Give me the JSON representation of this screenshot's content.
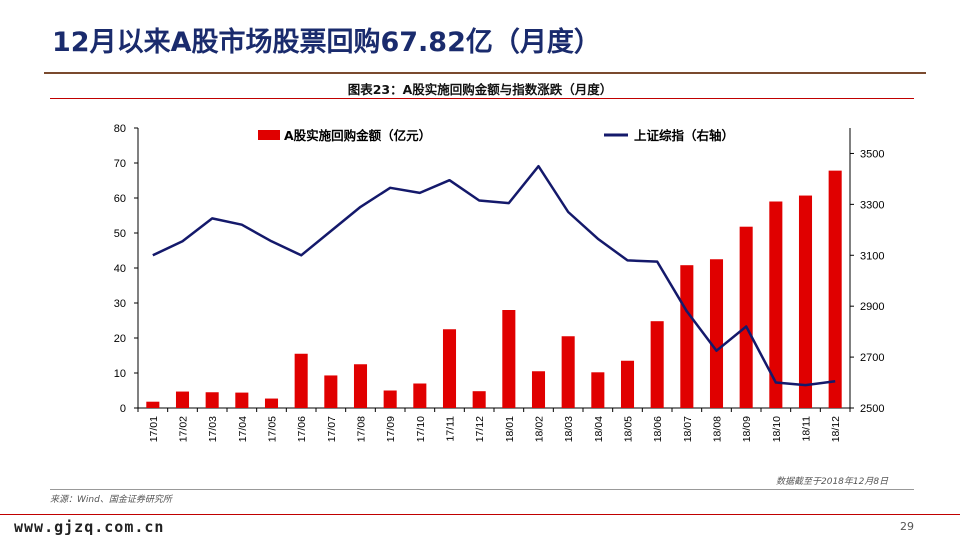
{
  "slide": {
    "title": "12月以来A股市场股票回购67.82亿（月度）",
    "figure_caption": "图表23：A股实施回购金额与指数涨跌（月度）",
    "data_note": "数据截至于2018年12月8日",
    "source": "来源：Wind、国金证券研究所",
    "footer_url": "www.gjzq.com.cn",
    "page_number": "29"
  },
  "colors": {
    "title": "#1a2b6d",
    "bar": "#e00000",
    "line": "#14196b",
    "rule": "#c00000"
  },
  "chart_data": {
    "type": "bar",
    "categories": [
      "17/01",
      "17/02",
      "17/03",
      "17/04",
      "17/05",
      "17/06",
      "17/07",
      "17/08",
      "17/09",
      "17/10",
      "17/11",
      "17/12",
      "18/01",
      "18/02",
      "18/03",
      "18/04",
      "18/05",
      "18/06",
      "18/07",
      "18/08",
      "18/09",
      "18/10",
      "18/11",
      "18/12"
    ],
    "series": [
      {
        "name": "A股实施回购金额（亿元）",
        "type": "bar",
        "axis": "left",
        "values": [
          1.8,
          4.7,
          4.5,
          4.4,
          2.7,
          15.5,
          9.3,
          12.5,
          5.0,
          7.0,
          22.5,
          4.8,
          28.0,
          10.5,
          20.5,
          10.2,
          13.5,
          24.8,
          40.8,
          42.5,
          51.8,
          59.0,
          60.7,
          67.82
        ]
      },
      {
        "name": "上证综指（右轴）",
        "type": "line",
        "axis": "right",
        "values": [
          3100,
          3155,
          3245,
          3220,
          3155,
          3100,
          3195,
          3290,
          3365,
          3345,
          3395,
          3315,
          3305,
          3450,
          3270,
          3165,
          3080,
          3075,
          2880,
          2725,
          2820,
          2600,
          2590,
          2605
        ]
      }
    ],
    "ylim_left": [
      0,
      80
    ],
    "yticks_left": [
      "0",
      "10",
      "20",
      "30",
      "40",
      "50",
      "60",
      "70",
      "80"
    ],
    "ylim_right": [
      2500,
      3600
    ],
    "yticks_right": [
      "2500",
      "2700",
      "2900",
      "3100",
      "3300",
      "3500"
    ],
    "legend_position": "top",
    "grid": false
  }
}
